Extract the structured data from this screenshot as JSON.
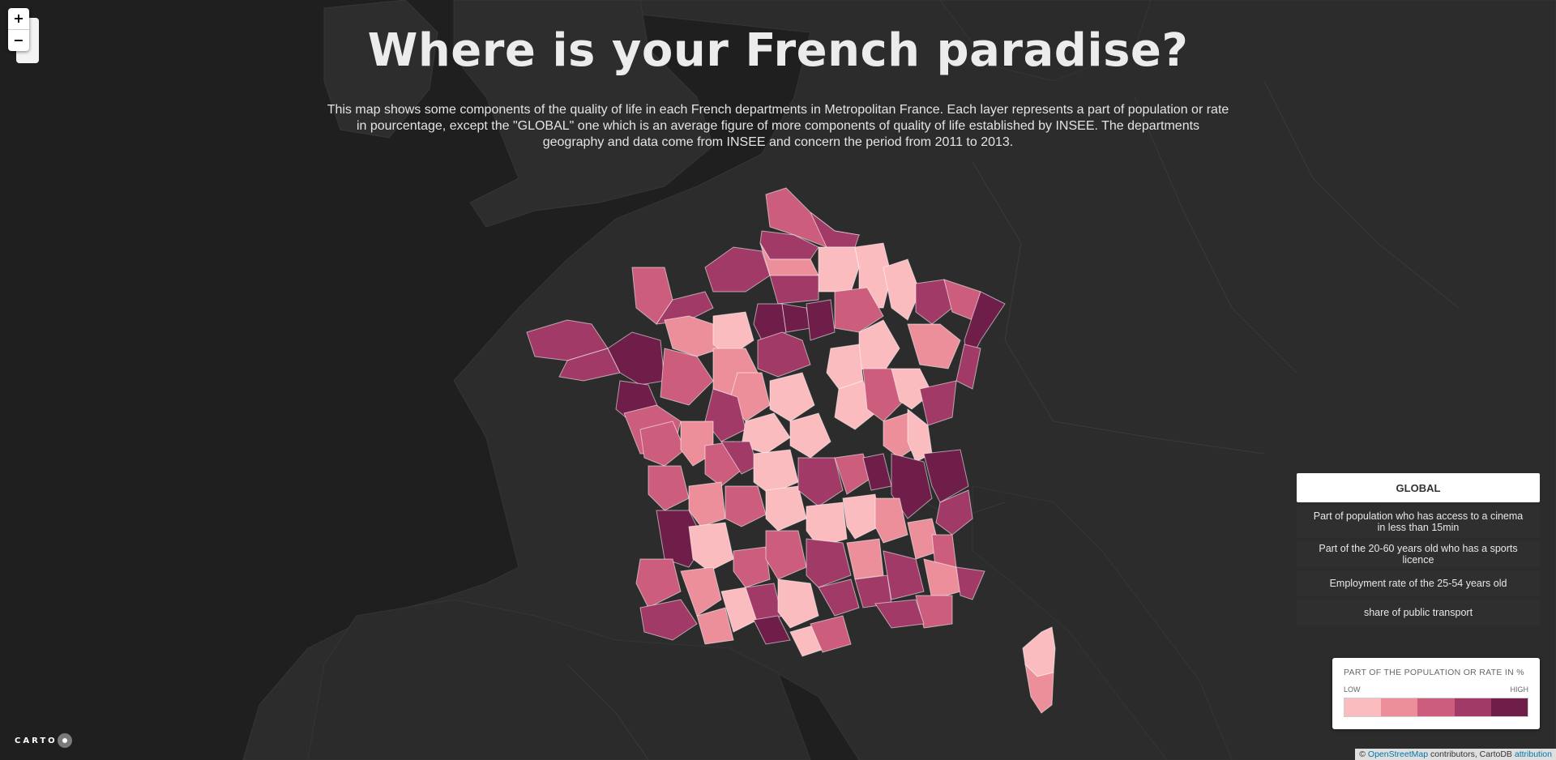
{
  "map": {
    "title": "Where is your French paradise?",
    "description": "This map shows some components of the quality of life in each French departments in Metropolitan France. Each layer represents a part of population or rate in pourcentage, except the \"GLOBAL\" one which is an average figure of more components of quality of life established by INSEE. The departments geography and data come from INSEE and concern the period from 2011 to 2013.",
    "basemap_color": "#232323",
    "land_color": "#2a2a2a"
  },
  "zoom": {
    "in_label": "+",
    "out_label": "−"
  },
  "layers": [
    {
      "label": "GLOBAL",
      "active": true
    },
    {
      "label": "Part of population who has access to a cinema in less than 15min",
      "active": false
    },
    {
      "label": "Part of the 20-60 years old who has a sports licence",
      "active": false
    },
    {
      "label": "Employment rate of the 25-54 years old",
      "active": false
    },
    {
      "label": "share of public transport",
      "active": false
    }
  ],
  "legend": {
    "title": "PART OF THE POPULATION OR RATE IN %",
    "low_label": "LOW",
    "high_label": "HIGH",
    "colors": [
      "#fbbcc0",
      "#ec8f9a",
      "#cc5d7c",
      "#a13a67",
      "#6f1e49"
    ]
  },
  "branding": {
    "carto_label": "CARTO"
  },
  "attribution": {
    "prefix": "©",
    "osm": "OpenStreetMap",
    "middle": "contributors, CartoDB",
    "link": "attribution"
  }
}
